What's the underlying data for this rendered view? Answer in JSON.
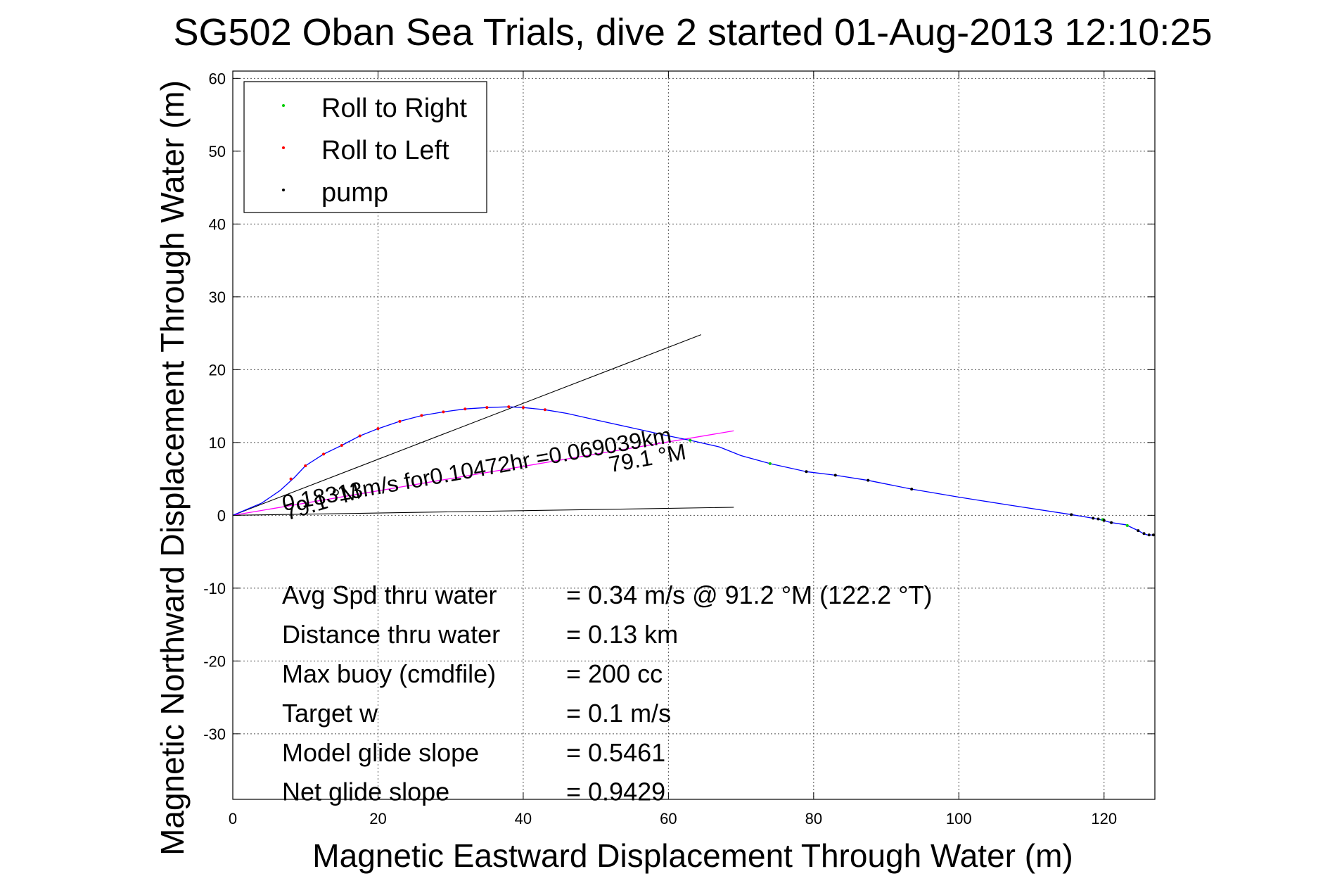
{
  "chart_data": {
    "type": "scatter",
    "title": "SG502 Oban Sea Trials, dive 2 started 01-Aug-2013 12:10:25",
    "xlabel": "Magnetic Eastward Displacement Through Water (m)",
    "ylabel": "Magnetic Northward Displacement Through Water (m)",
    "xlim": [
      0,
      127
    ],
    "ylim": [
      -39,
      61
    ],
    "xticks": [
      0,
      20,
      40,
      60,
      80,
      100,
      120
    ],
    "yticks": [
      -30,
      -20,
      -10,
      0,
      10,
      20,
      30,
      40,
      50,
      60
    ],
    "grid": true,
    "legend_position": "top-left",
    "colors": {
      "track": "#0000ff",
      "roll_right": "#00cc00",
      "roll_left": "#ff0000",
      "pump": "#000000",
      "net_line": "#ff00ff",
      "heading_lines": "#000000"
    },
    "track": [
      [
        0,
        0
      ],
      [
        4,
        1.7
      ],
      [
        6.5,
        3.4
      ],
      [
        8.5,
        5.2
      ],
      [
        10,
        6.8
      ],
      [
        12.5,
        8.4
      ],
      [
        15,
        9.6
      ],
      [
        17.5,
        10.9
      ],
      [
        20,
        11.9
      ],
      [
        23,
        12.9
      ],
      [
        26,
        13.7
      ],
      [
        29,
        14.2
      ],
      [
        32,
        14.6
      ],
      [
        35,
        14.8
      ],
      [
        38,
        14.9
      ],
      [
        40,
        14.8
      ],
      [
        43,
        14.5
      ],
      [
        46,
        14.0
      ],
      [
        50,
        13.1
      ],
      [
        55,
        12.0
      ],
      [
        60,
        10.9
      ],
      [
        63,
        10.3
      ],
      [
        67,
        9.4
      ],
      [
        70,
        8.2
      ],
      [
        74,
        7.1
      ],
      [
        79,
        6.0
      ],
      [
        83,
        5.5
      ],
      [
        87.5,
        4.8
      ],
      [
        93.5,
        3.6
      ],
      [
        100,
        2.5
      ],
      [
        107,
        1.4
      ],
      [
        115.5,
        0.1
      ],
      [
        118.5,
        -0.4
      ],
      [
        119.5,
        -0.6
      ],
      [
        121,
        -1.0
      ],
      [
        123,
        -1.3
      ],
      [
        124.7,
        -2.1
      ],
      [
        125.4,
        -2.5
      ],
      [
        126,
        -2.7
      ],
      [
        126.5,
        -2.7
      ],
      [
        127,
        -2.7
      ]
    ],
    "series": [
      {
        "name": "Roll to Right",
        "points": [
          [
            63,
            10.3
          ],
          [
            74,
            7.1
          ],
          [
            119.8,
            -0.6
          ],
          [
            123.2,
            -1.4
          ]
        ]
      },
      {
        "name": "Roll to Left",
        "points": [
          [
            8,
            5.0
          ],
          [
            10,
            6.8
          ],
          [
            12.5,
            8.4
          ],
          [
            15,
            9.6
          ],
          [
            17.5,
            10.9
          ],
          [
            20,
            11.9
          ],
          [
            23,
            12.9
          ],
          [
            26,
            13.7
          ],
          [
            29,
            14.2
          ],
          [
            32,
            14.6
          ],
          [
            35,
            14.8
          ],
          [
            38,
            14.9
          ],
          [
            40,
            14.8
          ],
          [
            43,
            14.5
          ]
        ]
      },
      {
        "name": "pump",
        "points": [
          [
            79,
            6.0
          ],
          [
            83,
            5.5
          ],
          [
            87.5,
            4.8
          ],
          [
            93.5,
            3.6
          ],
          [
            115.5,
            0.1
          ],
          [
            118.5,
            -0.4
          ],
          [
            119.2,
            -0.5
          ],
          [
            120,
            -0.7
          ],
          [
            121,
            -1.0
          ],
          [
            124.7,
            -2.1
          ],
          [
            125.5,
            -2.5
          ],
          [
            126.2,
            -2.7
          ],
          [
            126.8,
            -2.7
          ]
        ]
      }
    ],
    "net_line": [
      [
        0,
        0
      ],
      [
        69,
        11.6
      ]
    ],
    "heading_lines": [
      {
        "from": [
          0,
          0
        ],
        "to": [
          64.5,
          24.8
        ]
      },
      {
        "from": [
          0,
          0
        ],
        "to": [
          69,
          1.1
        ]
      }
    ],
    "annotations": [
      {
        "text": "79.1 °M",
        "x": 7.5,
        "y": -0.7,
        "angle": -17
      },
      {
        "text": "0.18313m/s for0.10472hr =0.069039km",
        "x": 7,
        "y": 0.6,
        "angle": -10
      },
      {
        "text": "79.1 °M",
        "x": 52,
        "y": 5.9,
        "angle": -10
      }
    ],
    "stats": [
      {
        "label": "Avg Spd thru water",
        "value": "=  0.34 m/s @  91.2 °M (122.2 °T)",
        "y": -11
      },
      {
        "label": "Distance thru water",
        "value": "=  0.13 km",
        "y": -16.4
      },
      {
        "label": "Max buoy (cmdfile)",
        "value": "= 200 cc",
        "y": -21.8
      },
      {
        "label": "Target w",
        "value": "= 0.1 m/s",
        "y": -27.2
      },
      {
        "label": "Model glide slope",
        "value": "= 0.5461",
        "y": -32.6
      },
      {
        "label": "Net glide slope",
        "value": "= 0.9429",
        "y": -38
      }
    ]
  }
}
